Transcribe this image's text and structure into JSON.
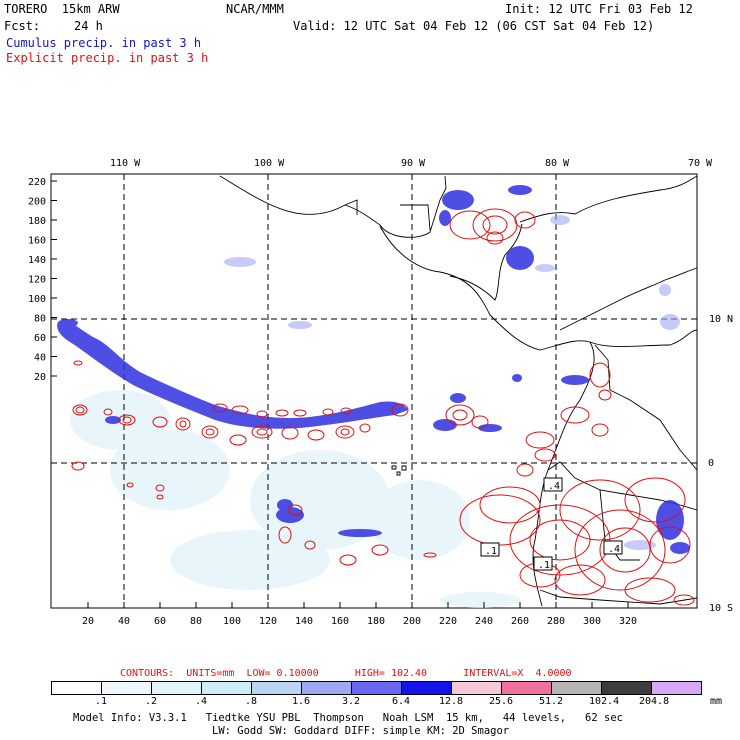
{
  "header": {
    "model": "TORERO  15km ARW",
    "center": "NCAR/MMM",
    "init": "Init: 12 UTC Fri 03 Feb 12",
    "fcst_label": "Fcst:",
    "fcst_value": "24 h",
    "valid": "Valid: 12 UTC Sat 04 Feb 12 (06 CST Sat 04 Feb 12)",
    "legend_cumulus": "Cumulus precip. in past 3 h",
    "legend_explicit": "Explicit precip. in past 3 h"
  },
  "colors": {
    "cumulus": "#1414c8",
    "explicit": "#e01010"
  },
  "map": {
    "lon_labels": [
      "110 W",
      "100 W",
      "90 W",
      "80 W",
      "70 W"
    ],
    "lat_labels": [
      "10 N",
      "0",
      "10 S"
    ],
    "y_ticks": [
      "220",
      "200",
      "180",
      "160",
      "140",
      "120",
      "100",
      "80",
      "60",
      "40",
      "20"
    ],
    "x_ticks": [
      "20",
      "40",
      "60",
      "80",
      "100",
      "120",
      "140",
      "160",
      "180",
      "200",
      "220",
      "240",
      "260",
      "280",
      "300",
      "320"
    ],
    "contour_labels": [
      ".4",
      ".1",
      ".1",
      ".4"
    ]
  },
  "contours_info": {
    "label": "CONTOURS:",
    "units": "UNITS=mm",
    "low": "LOW= 0.10000",
    "high": "HIGH= 102.40",
    "interval": "INTERVAL=X  4.0000"
  },
  "colorbar": {
    "labels": [
      ".1",
      ".2",
      ".4",
      ".8",
      "1.6",
      "3.2",
      "6.4",
      "12.8",
      "25.6",
      "51.2",
      "102.4",
      "204.8"
    ],
    "units": "mm",
    "colors": [
      "#ffffff",
      "#f0f8ff",
      "#e0f4fa",
      "#cdeef6",
      "#bcd4f4",
      "#a0a8f4",
      "#6868f0",
      "#1414e8",
      "#f8c8d8",
      "#f070a0",
      "#b4b4b4",
      "#3c3c3c",
      "#d8a8f8"
    ]
  },
  "footer": {
    "line1": "Model Info: V3.3.1   Tiedtke YSU PBL  Thompson   Noah LSM  15 km,   44 levels,   62 sec",
    "line2": "LW: Godd SW: Goddard DIFF: simple KM: 2D Smagor"
  }
}
